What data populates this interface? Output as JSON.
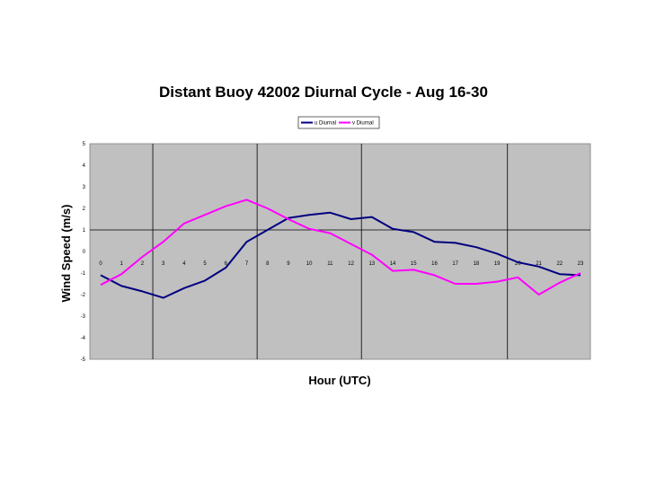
{
  "chart_data": {
    "type": "line",
    "title": "Distant Buoy 42002 Diurnal Cycle - Aug 16-30",
    "xlabel": "Hour (UTC)",
    "ylabel": "Wind Speed (m/s)",
    "x": [
      0,
      1,
      2,
      3,
      4,
      5,
      6,
      7,
      8,
      9,
      10,
      11,
      12,
      13,
      14,
      15,
      16,
      17,
      18,
      19,
      20,
      21,
      22,
      23
    ],
    "ylim": [
      -5,
      5
    ],
    "yticks": [
      5,
      4,
      3,
      2,
      1,
      0,
      -1,
      -2,
      -3,
      -4,
      -5
    ],
    "grid": "vertical lines at hours 2.5, 7.5, 12.5, 19.5; horizontal line at 1",
    "legend_placement": "top-center",
    "series": [
      {
        "name": "u Diurnal",
        "color": "#000080",
        "values": [
          -1.1,
          -1.6,
          -1.85,
          -2.15,
          -1.7,
          -1.35,
          -0.75,
          0.45,
          1.0,
          1.55,
          1.7,
          1.8,
          1.5,
          1.6,
          1.05,
          0.9,
          0.45,
          0.4,
          0.2,
          -0.1,
          -0.5,
          -0.7,
          -1.05,
          -1.1
        ]
      },
      {
        "name": "v Diurnal",
        "color": "#ff00ff",
        "values": [
          -1.55,
          -1.05,
          -0.25,
          0.45,
          1.3,
          1.7,
          2.1,
          2.4,
          2.0,
          1.5,
          1.05,
          0.85,
          0.35,
          -0.15,
          -0.9,
          -0.85,
          -1.1,
          -1.5,
          -1.5,
          -1.4,
          -1.2,
          -2.0,
          -1.45,
          -1.0
        ]
      }
    ]
  }
}
